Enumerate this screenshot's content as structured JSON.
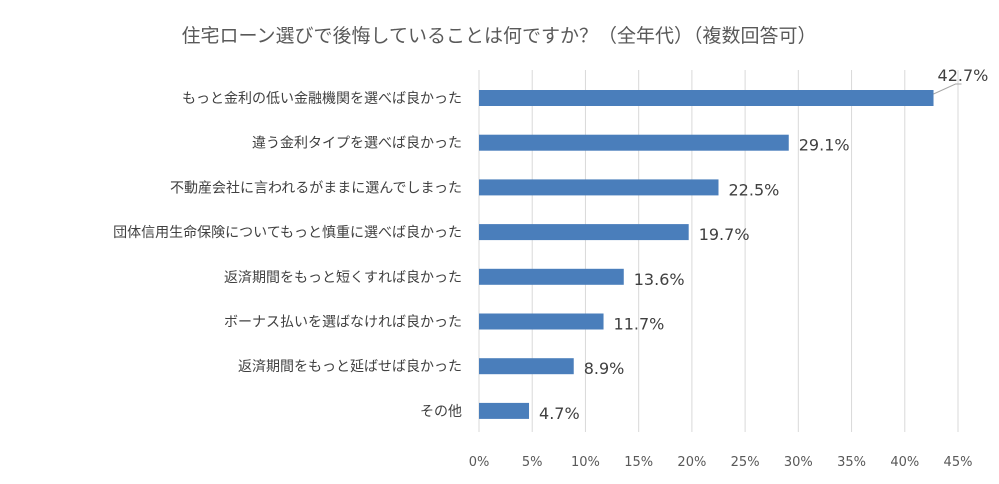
{
  "chart_data": {
    "type": "bar",
    "orientation": "horizontal",
    "title": "住宅ローン選びで後悔していることは何ですか？（全年代）（複数回答可）",
    "categories": [
      "もっと金利の低い金融機関を選べば良かった",
      "違う金利タイプを選べば良かった",
      "不動産会社に言われるがままに選んでしまった",
      "団体信用生命保険についてもっと慎重に選べば良かった",
      "返済期間をもっと短くすれば良かった",
      "ボーナス払いを選ばなければ良かった",
      "返済期間をもっと延ばせば良かった",
      "その他"
    ],
    "values": [
      42.7,
      29.1,
      22.5,
      19.7,
      13.6,
      11.7,
      8.9,
      4.7
    ],
    "value_labels": [
      "42.7%",
      "29.1%",
      "22.5%",
      "19.7%",
      "13.6%",
      "11.7%",
      "8.9%",
      "4.7%"
    ],
    "xlim": [
      0,
      45
    ],
    "xticks": [
      0,
      5,
      10,
      15,
      20,
      25,
      30,
      35,
      40,
      45
    ],
    "xtick_labels": [
      "0%",
      "5%",
      "10%",
      "15%",
      "20%",
      "25%",
      "30%",
      "35%",
      "40%",
      "45%"
    ],
    "grid": true,
    "legend": "none",
    "colors": {
      "bar": "#4a7ebb",
      "grid": "#d9d9d9",
      "text": "#404040",
      "title": "#595959"
    }
  }
}
